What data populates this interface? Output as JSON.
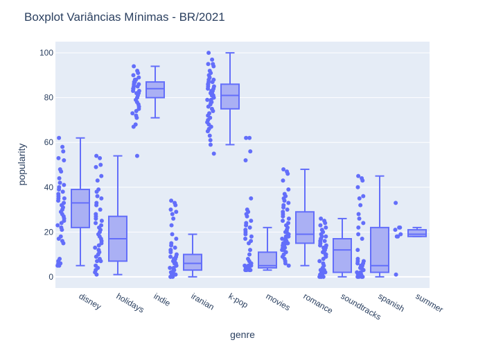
{
  "chart_data": {
    "type": "box",
    "title": "Boxplot Variâncias Mínimas - BR/2021",
    "xlabel": "genre",
    "ylabel": "popularity",
    "ylim": [
      -5,
      105
    ],
    "yticks": [
      0,
      20,
      40,
      60,
      80,
      100
    ],
    "grid": true,
    "box_color": "#636efa",
    "box_fill": "#aab0f4",
    "plot_bg": "#e5ecf6",
    "categories": [
      "disney",
      "holidays",
      "indie",
      "iranian",
      "k-pop",
      "movies",
      "romance",
      "soundtracks",
      "spanish",
      "summer"
    ],
    "boxes": [
      {
        "genre": "disney",
        "min": 5,
        "q1": 22,
        "median": 33,
        "q3": 39,
        "max": 62,
        "points": [
          62,
          58,
          56,
          53,
          52,
          48,
          47,
          44,
          42,
          41,
          40,
          39,
          38,
          37,
          36,
          35,
          35,
          34,
          33,
          32,
          31,
          30,
          29,
          28,
          27,
          26,
          25,
          24,
          23,
          22,
          21,
          18,
          17,
          16,
          15,
          8,
          7,
          6,
          6,
          5,
          5
        ]
      },
      {
        "genre": "holidays",
        "min": 1,
        "q1": 7,
        "median": 17,
        "q3": 27,
        "max": 54,
        "points": [
          54,
          53,
          50,
          49,
          45,
          43,
          39,
          38,
          36,
          35,
          33,
          32,
          30,
          28,
          27,
          26,
          25,
          24,
          23,
          22,
          21,
          20,
          19,
          18,
          17,
          16,
          15,
          14,
          13,
          12,
          11,
          10,
          9,
          8,
          7,
          7,
          5,
          4,
          3,
          2,
          1
        ]
      },
      {
        "genre": "indie",
        "min": 71,
        "q1": 80,
        "median": 84,
        "q3": 87,
        "max": 94,
        "points": [
          94,
          92,
          91,
          90,
          89,
          88,
          88,
          87,
          87,
          86,
          86,
          85,
          85,
          84,
          84,
          84,
          83,
          83,
          82,
          82,
          81,
          80,
          79,
          78,
          77,
          76,
          75,
          74,
          73,
          72,
          71,
          68,
          67,
          54
        ]
      },
      {
        "genre": "iranian",
        "min": 0,
        "q1": 3,
        "median": 6,
        "q3": 10,
        "max": 19,
        "points": [
          34,
          33,
          32,
          30,
          29,
          28,
          26,
          23,
          19,
          17,
          15,
          14,
          13,
          12,
          12,
          11,
          10,
          9,
          9,
          8,
          8,
          7,
          7,
          6,
          6,
          5,
          5,
          4,
          4,
          3,
          3,
          2,
          2,
          1,
          1,
          1,
          0,
          0,
          0
        ]
      },
      {
        "genre": "k-pop",
        "min": 59,
        "q1": 75,
        "median": 81,
        "q3": 86,
        "max": 100,
        "points": [
          100,
          97,
          95,
          95,
          94,
          92,
          91,
          90,
          89,
          88,
          88,
          87,
          87,
          86,
          86,
          85,
          85,
          84,
          84,
          83,
          83,
          82,
          82,
          81,
          81,
          80,
          80,
          79,
          79,
          78,
          78,
          77,
          76,
          75,
          74,
          73,
          72,
          71,
          70,
          69,
          68,
          67,
          66,
          65,
          63,
          61,
          59,
          55
        ]
      },
      {
        "genre": "movies",
        "min": 3,
        "q1": 4,
        "median": 5,
        "q3": 11,
        "max": 22,
        "points": [
          62,
          62,
          56,
          52,
          35,
          30,
          29,
          28,
          27,
          25,
          24,
          23,
          22,
          21,
          20,
          19,
          18,
          17,
          16,
          15,
          12,
          10,
          8,
          7,
          6,
          6,
          5,
          5,
          5,
          4,
          4,
          4,
          4,
          3,
          3,
          3,
          3
        ]
      },
      {
        "genre": "romance",
        "min": 5,
        "q1": 15,
        "median": 19,
        "q3": 29,
        "max": 48,
        "points": [
          48,
          47,
          46,
          43,
          39,
          37,
          36,
          35,
          34,
          33,
          32,
          31,
          30,
          29,
          28,
          27,
          26,
          25,
          24,
          23,
          22,
          21,
          20,
          20,
          19,
          19,
          18,
          18,
          17,
          17,
          16,
          16,
          15,
          15,
          15,
          14,
          14,
          13,
          13,
          12,
          12,
          11,
          10,
          9,
          8,
          7,
          6,
          5
        ]
      },
      {
        "genre": "soundtracks",
        "min": 0,
        "q1": 2,
        "median": 12,
        "q3": 17,
        "max": 26,
        "points": [
          26,
          25,
          24,
          23,
          22,
          21,
          20,
          19,
          18,
          18,
          17,
          17,
          16,
          16,
          15,
          15,
          14,
          14,
          13,
          13,
          12,
          12,
          11,
          11,
          10,
          10,
          9,
          8,
          7,
          6,
          5,
          4,
          3,
          3,
          2,
          2,
          1,
          1,
          1,
          0,
          0,
          0,
          0
        ]
      },
      {
        "genre": "spanish",
        "min": 0,
        "q1": 2,
        "median": 5,
        "q3": 22,
        "max": 45,
        "points": [
          45,
          44,
          43,
          40,
          36,
          35,
          32,
          28,
          26,
          24,
          22,
          19,
          17,
          12,
          8,
          7,
          7,
          6,
          6,
          5,
          5,
          4,
          4,
          4,
          3,
          3,
          3,
          2,
          2,
          2,
          1,
          1,
          1,
          0,
          0,
          0,
          0
        ]
      },
      {
        "genre": "summer",
        "min": 18,
        "q1": 18,
        "median": 19,
        "q3": 21,
        "max": 22,
        "points": [
          33,
          22,
          22,
          21,
          19,
          18,
          18,
          1
        ]
      }
    ]
  }
}
